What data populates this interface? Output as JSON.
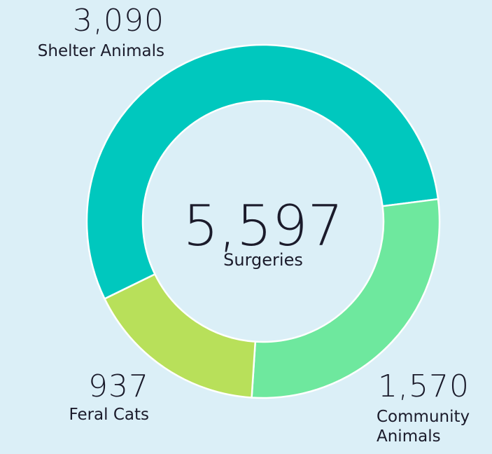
{
  "chart_data": {
    "type": "donut",
    "center_label": "5,597",
    "center_sublabel": "Surgeries",
    "categories": [
      "Shelter Animals",
      "Community Animals",
      "Feral Cats"
    ],
    "values": [
      3090,
      1570,
      937
    ],
    "value_labels": [
      "3,090",
      "1,570",
      "937"
    ],
    "colors": [
      "#00c8be",
      "#6ee89e",
      "#b8e05a"
    ]
  }
}
